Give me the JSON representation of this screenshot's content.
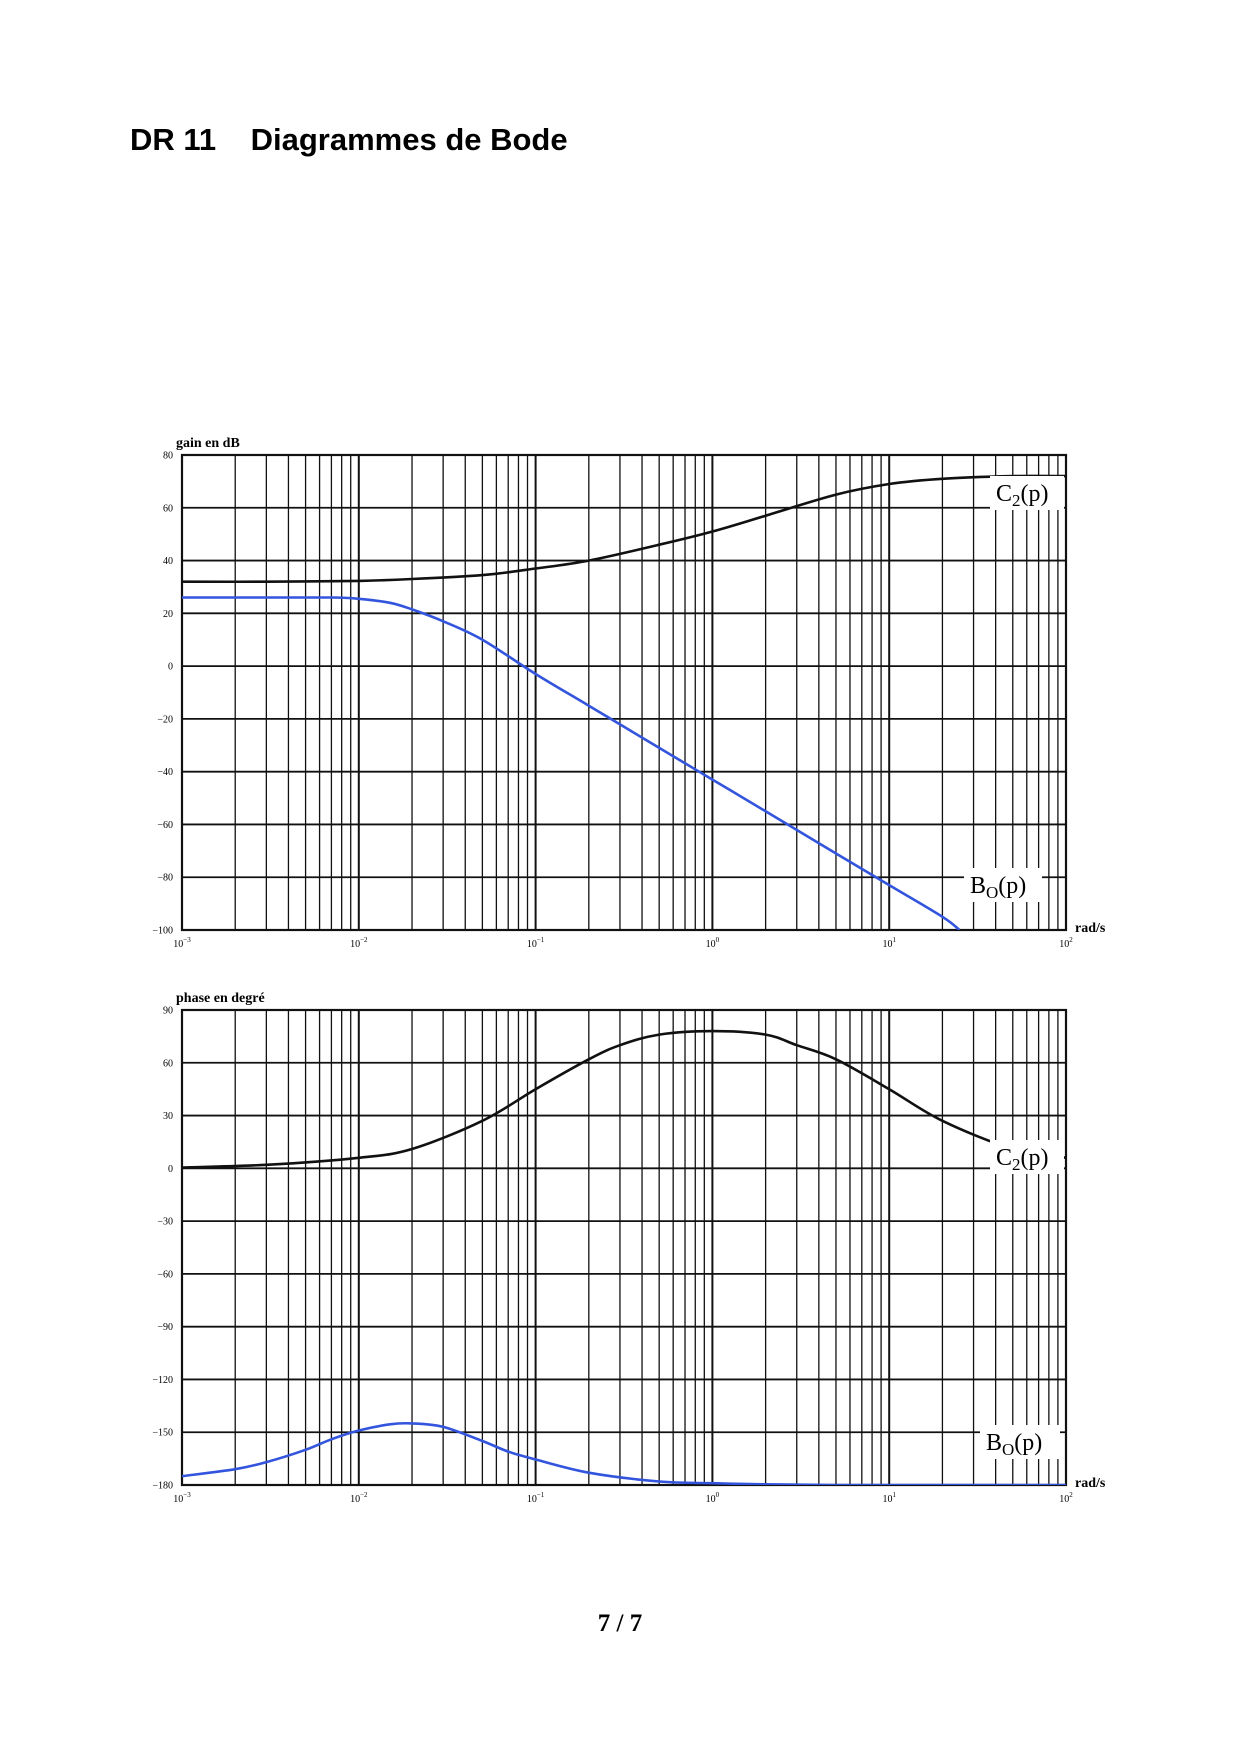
{
  "page": {
    "title": "DR 11    Diagrammes de Bode",
    "page_number": "7 / 7"
  },
  "colors": {
    "c2_curve": "#111111",
    "bo_curve": "#3355dd",
    "grid": "#111111"
  },
  "chart_data": [
    {
      "id": "gain",
      "type": "line",
      "title": "",
      "ylabel": "gain en dB",
      "xlabel": "rad/s",
      "x_scale": "log",
      "xlim": [
        0.001,
        100
      ],
      "ylim": [
        -100,
        80
      ],
      "yticks": [
        80,
        60,
        40,
        20,
        0,
        -20,
        -40,
        -60,
        -80,
        -100
      ],
      "ytick_labels": [
        "80",
        "60",
        "40",
        "20",
        "0",
        "−20",
        "−40",
        "−60",
        "−80",
        "−100"
      ],
      "xticks": [
        {
          "base": "10",
          "exp": "−3"
        },
        {
          "base": "10",
          "exp": "−2"
        },
        {
          "base": "10",
          "exp": "−1"
        },
        {
          "base": "10",
          "exp": "0"
        },
        {
          "base": "10",
          "exp": "1"
        },
        {
          "base": "10",
          "exp": "2"
        }
      ],
      "grid": true,
      "series": [
        {
          "key": "c2",
          "label_main": "C",
          "label_sub": "2",
          "label_tail": "(p)",
          "x": [
            0.001,
            0.003,
            0.01,
            0.02,
            0.05,
            0.1,
            0.2,
            0.5,
            1,
            2,
            5,
            10,
            20,
            50,
            100
          ],
          "y": [
            32,
            32,
            32.3,
            33,
            34.5,
            37,
            40,
            46,
            51,
            57,
            65,
            69,
            71,
            72,
            72
          ]
        },
        {
          "key": "bo",
          "label_main": "B",
          "label_sub": "O",
          "label_tail": "(p)",
          "x": [
            0.001,
            0.003,
            0.007,
            0.01,
            0.015,
            0.02,
            0.03,
            0.05,
            0.1,
            0.2,
            0.5,
            1,
            2,
            5,
            10,
            20,
            25
          ],
          "y": [
            26,
            26,
            26,
            25.5,
            24,
            21.5,
            17,
            10,
            -3,
            -15,
            -31,
            -43,
            -55,
            -71,
            -83,
            -95,
            -100
          ]
        }
      ]
    },
    {
      "id": "phase",
      "type": "line",
      "title": "",
      "ylabel": "phase en degré",
      "xlabel": "rad/s",
      "x_scale": "log",
      "xlim": [
        0.001,
        100
      ],
      "ylim": [
        -180,
        90
      ],
      "yticks": [
        90,
        60,
        30,
        0,
        -30,
        -60,
        -90,
        -120,
        -150,
        -180
      ],
      "ytick_labels": [
        "90",
        "60",
        "30",
        "0",
        "−30",
        "−60",
        "−90",
        "−120",
        "−150",
        "−180"
      ],
      "xticks": [
        {
          "base": "10",
          "exp": "−3"
        },
        {
          "base": "10",
          "exp": "−2"
        },
        {
          "base": "10",
          "exp": "−1"
        },
        {
          "base": "10",
          "exp": "0"
        },
        {
          "base": "10",
          "exp": "1"
        },
        {
          "base": "10",
          "exp": "2"
        }
      ],
      "grid": true,
      "series": [
        {
          "key": "c2",
          "label_main": "C",
          "label_sub": "2",
          "label_tail": "(p)",
          "x": [
            0.001,
            0.003,
            0.01,
            0.02,
            0.05,
            0.1,
            0.2,
            0.3,
            0.5,
            1,
            2,
            3,
            5,
            10,
            20,
            50,
            100
          ],
          "y": [
            0.5,
            2,
            6,
            11,
            27,
            45,
            62,
            70,
            76,
            78,
            76,
            70,
            62,
            45,
            27,
            11,
            6
          ]
        },
        {
          "key": "bo",
          "label_main": "B",
          "label_sub": "O",
          "label_tail": "(p)",
          "x": [
            0.001,
            0.002,
            0.003,
            0.005,
            0.007,
            0.01,
            0.015,
            0.02,
            0.03,
            0.05,
            0.07,
            0.1,
            0.2,
            0.5,
            1,
            2,
            5,
            10,
            20,
            100
          ],
          "y": [
            -175,
            -171,
            -167,
            -160,
            -154,
            -149,
            -145.5,
            -145,
            -147,
            -155,
            -161,
            -165.5,
            -173,
            -178,
            -179,
            -179.6,
            -180,
            -180,
            -180,
            -180
          ]
        }
      ]
    }
  ]
}
